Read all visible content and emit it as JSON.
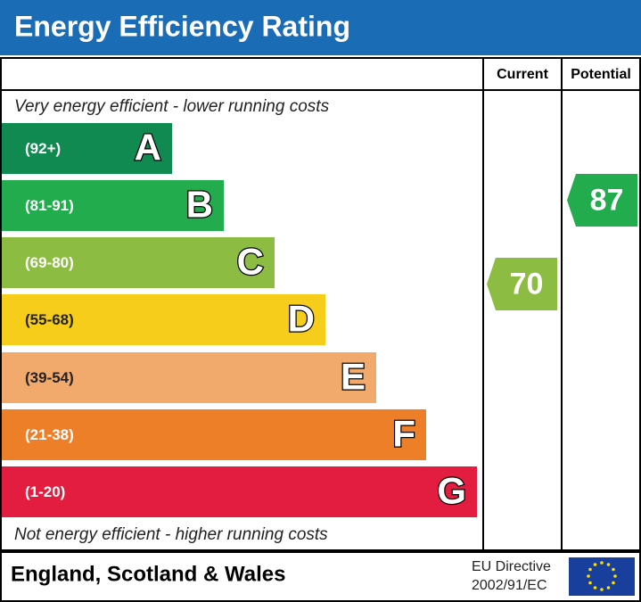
{
  "header": {
    "title": "Energy Efficiency Rating"
  },
  "columns": [
    "Current",
    "Potential"
  ],
  "top_note": "Very energy efficient - lower running costs",
  "bottom_note": "Not energy efficient - higher running costs",
  "bands": [
    {
      "range": "(92+)",
      "letter": "A",
      "color": "#108a50"
    },
    {
      "range": "(81-91)",
      "letter": "B",
      "color": "#22ac4e"
    },
    {
      "range": "(69-80)",
      "letter": "C",
      "color": "#8cbc42"
    },
    {
      "range": "(55-68)",
      "letter": "D",
      "color": "#f5cd1a"
    },
    {
      "range": "(39-54)",
      "letter": "E",
      "color": "#f2aa6c"
    },
    {
      "range": "(21-38)",
      "letter": "F",
      "color": "#ee7f29"
    },
    {
      "range": "(1-20)",
      "letter": "G",
      "color": "#e31d3f"
    }
  ],
  "current": {
    "value": 70,
    "color": "#8cbc42"
  },
  "potential": {
    "value": 87,
    "color": "#22ac4e"
  },
  "footer": {
    "region": "England, Scotland & Wales",
    "directive": [
      "EU Directive",
      "2002/91/EC"
    ]
  }
}
